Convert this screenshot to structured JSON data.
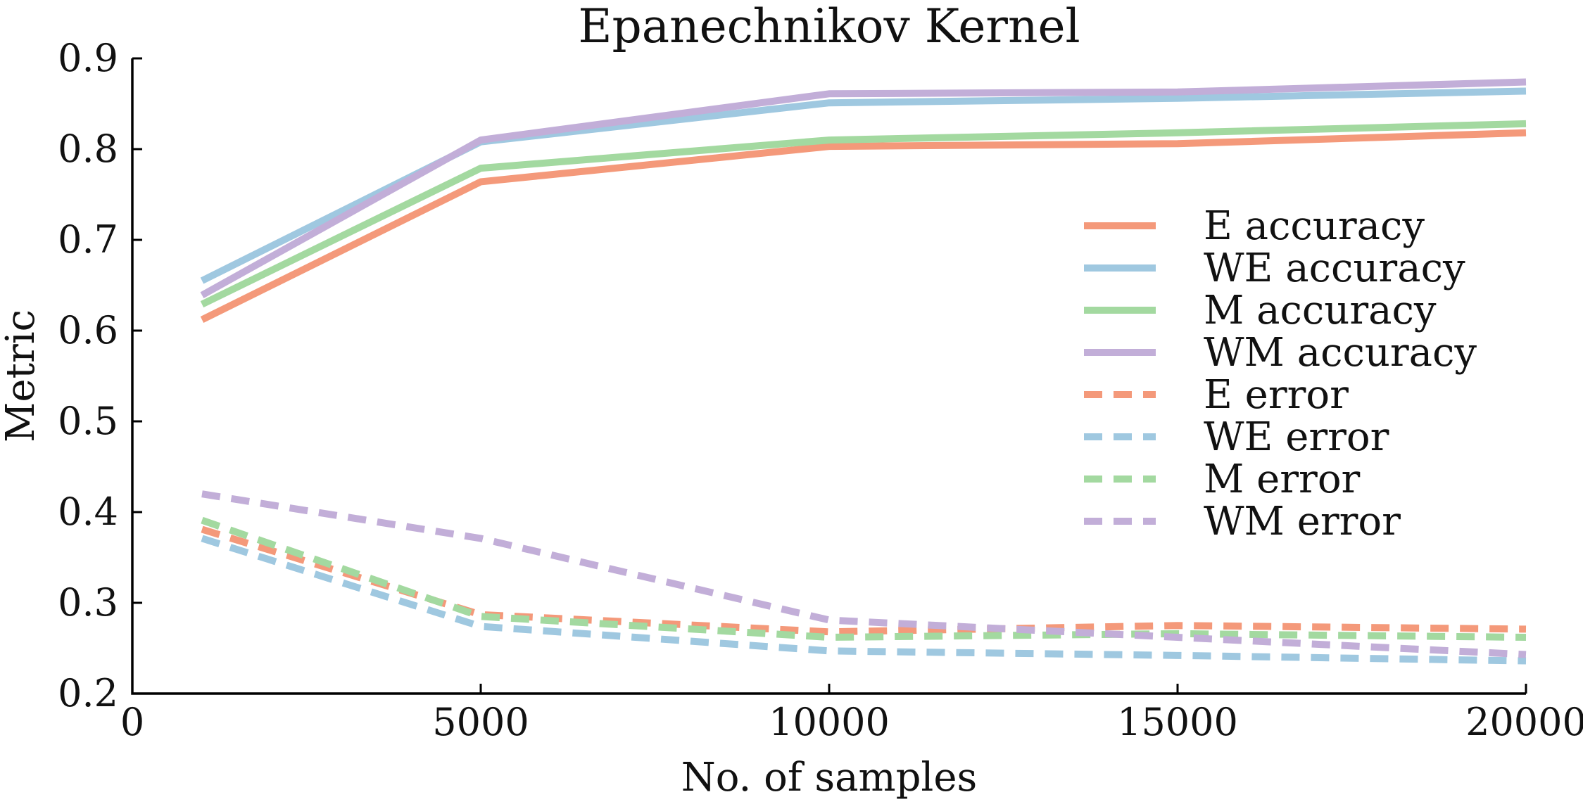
{
  "chart_data": {
    "type": "line",
    "title": "Epanechnikov Kernel",
    "xlabel": "No. of samples",
    "ylabel": "Metric",
    "xlim": [
      0,
      20000
    ],
    "ylim": [
      0.2,
      0.9
    ],
    "x_ticks": [
      0,
      5000,
      10000,
      15000,
      20000
    ],
    "x_tick_labels": [
      "0",
      "5000",
      "10000",
      "15000",
      "20000"
    ],
    "y_ticks": [
      0.2,
      0.3,
      0.4,
      0.5,
      0.6,
      0.7,
      0.8,
      0.9
    ],
    "y_tick_labels": [
      "0.2",
      "0.3",
      "0.4",
      "0.5",
      "0.6",
      "0.7",
      "0.8",
      "0.9"
    ],
    "x": [
      1000,
      5000,
      10000,
      15000,
      20000
    ],
    "grid": false,
    "legend_position": "right",
    "series": [
      {
        "name": "E accuracy",
        "values": [
          0.612,
          0.764,
          0.803,
          0.806,
          0.818
        ],
        "color": "#F4997A",
        "style": "solid"
      },
      {
        "name": "WE accuracy",
        "values": [
          0.655,
          0.808,
          0.851,
          0.856,
          0.864
        ],
        "color": "#9FC8E0",
        "style": "solid"
      },
      {
        "name": "M accuracy",
        "values": [
          0.629,
          0.779,
          0.81,
          0.818,
          0.828
        ],
        "color": "#A3D9A0",
        "style": "solid"
      },
      {
        "name": "WM accuracy",
        "values": [
          0.639,
          0.81,
          0.861,
          0.863,
          0.874
        ],
        "color": "#C2AED8",
        "style": "solid"
      },
      {
        "name": "E error",
        "values": [
          0.381,
          0.287,
          0.268,
          0.275,
          0.271
        ],
        "color": "#F4997A",
        "style": "dashed"
      },
      {
        "name": "WE error",
        "values": [
          0.371,
          0.274,
          0.247,
          0.242,
          0.236
        ],
        "color": "#9FC8E0",
        "style": "dashed"
      },
      {
        "name": "M error",
        "values": [
          0.391,
          0.285,
          0.262,
          0.266,
          0.262
        ],
        "color": "#A3D9A0",
        "style": "dashed"
      },
      {
        "name": "WM error",
        "values": [
          0.42,
          0.371,
          0.281,
          0.262,
          0.243
        ],
        "color": "#C2AED8",
        "style": "dashed"
      }
    ]
  }
}
